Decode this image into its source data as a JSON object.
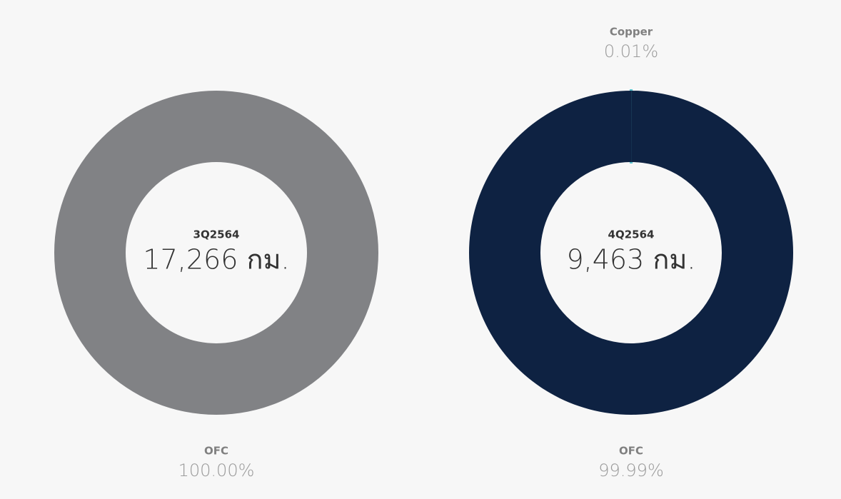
{
  "chart_data": [
    {
      "type": "pie",
      "center_label": "3Q2564",
      "center_value": "17,266 กม.",
      "categories": [
        "OFC"
      ],
      "values": [
        100
      ],
      "value_labels": [
        "100.00%"
      ],
      "colors": [
        "#818285"
      ]
    },
    {
      "type": "pie",
      "center_label": "4Q2564",
      "center_value": "9,463 กม.",
      "categories": [
        "Copper",
        "OFC"
      ],
      "values": [
        0.01,
        99.99
      ],
      "value_labels": [
        "0.01%",
        "99.99%"
      ],
      "colors": [
        "#5bc4cf",
        "#0e2242"
      ]
    }
  ]
}
